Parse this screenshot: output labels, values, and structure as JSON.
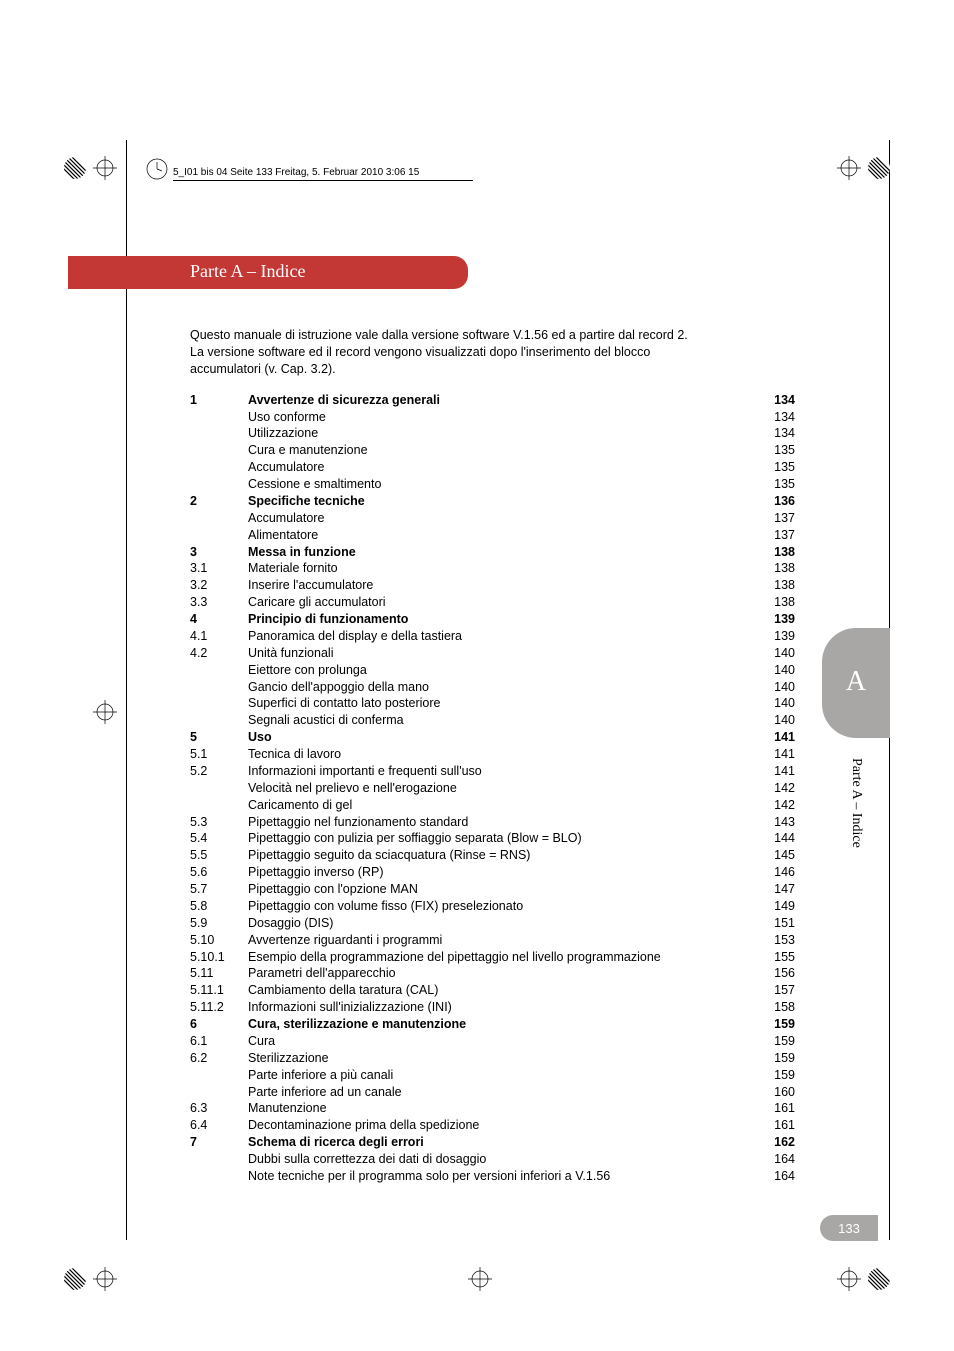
{
  "header_line": "5_I01 bis 04  Seite 133  Freitag, 5. Februar 2010  3:06 15",
  "title": "Parte A – Indice",
  "intro": [
    "Questo manuale di istruzione vale dalla versione software V.1.56 ed a partire dal record 2.",
    "La versione software ed il record vengono visualizzati dopo l'inserimento del blocco",
    "accumulatori (v. Cap. 3.2)."
  ],
  "side_tab_letter": "A",
  "side_label": "Parte A – Indice",
  "page_number": "133",
  "colors": {
    "pill_red": "#c33734",
    "grey": "#a8a7a6",
    "text": "#000000",
    "bg": "#ffffff"
  },
  "font_sizes": {
    "title": 18,
    "body": 12.5,
    "header": 10,
    "side_letter": 28,
    "side_label": 14,
    "page_num": 13
  },
  "toc": [
    {
      "num": "1",
      "label": "Avvertenze di sicurezza generali ",
      "page": "134",
      "bold": true
    },
    {
      "num": "",
      "label": "Uso conforme",
      "page": "134",
      "bold": false
    },
    {
      "num": "",
      "label": "Utilizzazione ",
      "page": "134",
      "bold": false
    },
    {
      "num": "",
      "label": "Cura e manutenzione ",
      "page": "135",
      "bold": false
    },
    {
      "num": "",
      "label": "Accumulatore ",
      "page": "135",
      "bold": false
    },
    {
      "num": "",
      "label": "Cessione e smaltimento",
      "page": "135",
      "bold": false
    },
    {
      "num": "2",
      "label": "Specifiche tecniche",
      "page": "136",
      "bold": true
    },
    {
      "num": "",
      "label": "Accumulatore ",
      "page": "137",
      "bold": false
    },
    {
      "num": "",
      "label": "Alimentatore ",
      "page": "137",
      "bold": false
    },
    {
      "num": "3",
      "label": "Messa in funzione ",
      "page": "138",
      "bold": true
    },
    {
      "num": "3.1",
      "label": "Materiale fornito ",
      "page": "138",
      "bold": false
    },
    {
      "num": "3.2",
      "label": "Inserire l'accumulatore",
      "page": "138",
      "bold": false
    },
    {
      "num": "3.3",
      "label": "Caricare gli accumulatori ",
      "page": "138",
      "bold": false
    },
    {
      "num": "4",
      "label": "Principio di funzionamento ",
      "page": "139",
      "bold": true
    },
    {
      "num": "4.1",
      "label": "Panoramica del display e della tastiera",
      "page": "139",
      "bold": false
    },
    {
      "num": "4.2",
      "label": "Unità funzionali",
      "page": "140",
      "bold": false
    },
    {
      "num": "",
      "label": "Eiettore con prolunga",
      "page": "140",
      "bold": false
    },
    {
      "num": "",
      "label": "Gancio dell'appoggio della mano ",
      "page": "140",
      "bold": false
    },
    {
      "num": "",
      "label": "Superfici di contatto lato posteriore",
      "page": "140",
      "bold": false
    },
    {
      "num": "",
      "label": "Segnali acustici di conferma ",
      "page": "140",
      "bold": false
    },
    {
      "num": "5",
      "label": "Uso",
      "page": "141",
      "bold": true
    },
    {
      "num": "5.1",
      "label": "Tecnica di lavoro ",
      "page": "141",
      "bold": false
    },
    {
      "num": "5.2",
      "label": "Informazioni importanti e frequenti sull'uso ",
      "page": "141",
      "bold": false
    },
    {
      "num": "",
      "label": "Velocità nel prelievo e nell'erogazione ",
      "page": "142",
      "bold": false
    },
    {
      "num": "",
      "label": "Caricamento di gel ",
      "page": "142",
      "bold": false
    },
    {
      "num": "5.3",
      "label": "Pipettaggio nel funzionamento standard ",
      "page": "143",
      "bold": false
    },
    {
      "num": "5.4",
      "label": "Pipettaggio con pulizia per soffiaggio separata (Blow = BLO)",
      "page": "144",
      "bold": false
    },
    {
      "num": "5.5",
      "label": "Pipettaggio seguito da sciacquatura (Rinse = RNS)",
      "page": "145",
      "bold": false
    },
    {
      "num": "5.6",
      "label": "Pipettaggio inverso (RP)",
      "page": "146",
      "bold": false
    },
    {
      "num": "5.7",
      "label": "Pipettaggio con l'opzione MAN ",
      "page": "147",
      "bold": false
    },
    {
      "num": "5.8",
      "label": "Pipettaggio con volume fisso (FIX) preselezionato ",
      "page": "149",
      "bold": false
    },
    {
      "num": "5.9",
      "label": "Dosaggio (DIS) ",
      "page": "151",
      "bold": false
    },
    {
      "num": "5.10",
      "label": "Avvertenze riguardanti i programmi ",
      "page": "153",
      "bold": false
    },
    {
      "num": "5.10.1",
      "label": "Esempio della programmazione del pipettaggio nel livello programmazione",
      "page": "155",
      "bold": false
    },
    {
      "num": "5.11",
      "label": "Parametri dell'apparecchio ",
      "page": "156",
      "bold": false
    },
    {
      "num": "5.11.1",
      "label": "Cambiamento della taratura (CAL)",
      "page": "157",
      "bold": false
    },
    {
      "num": "5.11.2",
      "label": "Informazioni sull'inizializzazione (INI) ",
      "page": "158",
      "bold": false
    },
    {
      "num": "6",
      "label": "Cura, sterilizzazione e manutenzione ",
      "page": "159",
      "bold": true
    },
    {
      "num": "6.1",
      "label": "Cura",
      "page": "159",
      "bold": false
    },
    {
      "num": "6.2",
      "label": "Sterilizzazione ",
      "page": "159",
      "bold": false
    },
    {
      "num": "",
      "label": "Parte inferiore a più canali",
      "page": "159",
      "bold": false
    },
    {
      "num": "",
      "label": "Parte inferiore ad un canale ",
      "page": "160",
      "bold": false
    },
    {
      "num": "6.3",
      "label": "Manutenzione",
      "page": "161",
      "bold": false
    },
    {
      "num": "6.4",
      "label": "Decontaminazione prima della spedizione ",
      "page": "161",
      "bold": false
    },
    {
      "num": "7",
      "label": "Schema di ricerca degli errori",
      "page": "162",
      "bold": true
    },
    {
      "num": "",
      "label": "Dubbi sulla correttezza dei dati di dosaggio ",
      "page": "164",
      "bold": false
    },
    {
      "num": "",
      "label": "Note tecniche per il programma solo per versioni inferiori a V.1.56",
      "page": "164",
      "bold": false
    }
  ]
}
